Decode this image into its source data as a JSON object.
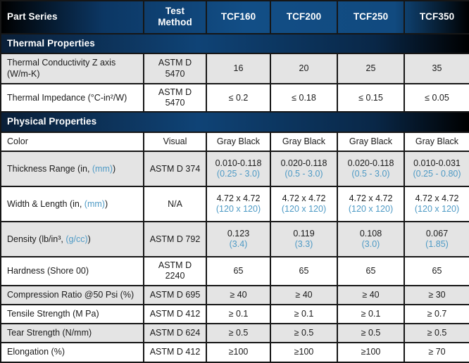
{
  "colors": {
    "header_navy": "#114a7f",
    "header_black": "#000000",
    "section_navy": "#0f4376",
    "accent_blue": "#4e9ac5",
    "row_shaded": "#e4e4e4",
    "row_white": "#ffffff",
    "border": "#161616",
    "header_text": "#ffffff",
    "body_text": "#1a1a1a"
  },
  "table": {
    "header": {
      "part_series_label": "Part Series",
      "test_method_label": "Test Method",
      "products": [
        "TCF160",
        "TCF200",
        "TCF250",
        "TCF350"
      ]
    },
    "sections": [
      {
        "title": "Thermal Properties",
        "rows": [
          {
            "label": [
              {
                "t": "Thermal Conductivity Z axis"
              },
              {
                "br": true
              },
              {
                "t": "(W/m-K)"
              }
            ],
            "test": "ASTM D\n5470",
            "shaded": true,
            "values": [
              {
                "v": "16"
              },
              {
                "v": "20"
              },
              {
                "v": "25"
              },
              {
                "v": "35"
              }
            ]
          },
          {
            "label": [
              {
                "t": "Thermal Impedance (°C-in²/W)"
              }
            ],
            "test": "ASTM D\n5470",
            "shaded": false,
            "values": [
              {
                "v": "≤ 0.2"
              },
              {
                "v": "≤ 0.18"
              },
              {
                "v": "≤ 0.15"
              },
              {
                "v": "≤ 0.05"
              }
            ]
          }
        ]
      },
      {
        "title": "Physical Properties",
        "rows": [
          {
            "label": [
              {
                "t": "Color"
              }
            ],
            "test": "Visual",
            "shaded": false,
            "values": [
              {
                "v": "Gray Black"
              },
              {
                "v": "Gray Black"
              },
              {
                "v": "Gray Black"
              },
              {
                "v": "Gray Black"
              }
            ]
          },
          {
            "label": [
              {
                "t": "Thickness Range (in, "
              },
              {
                "t": "(mm)",
                "blue": true
              },
              {
                "t": ")"
              }
            ],
            "test": "ASTM D 374",
            "shaded": true,
            "values": [
              {
                "v": "0.010-0.118",
                "sub": "(0.25 - 3.0)"
              },
              {
                "v": "0.020-0.118",
                "sub": "(0.5 - 3.0)"
              },
              {
                "v": "0.020-0.118",
                "sub": "(0.5 - 3.0)"
              },
              {
                "v": "0.010-0.031",
                "sub": "(0.25 - 0.80)"
              }
            ]
          },
          {
            "label": [
              {
                "t": "Width & Length (in, "
              },
              {
                "t": "(mm)",
                "blue": true
              },
              {
                "t": ")"
              }
            ],
            "test": "N/A",
            "shaded": false,
            "values": [
              {
                "v": "4.72 x 4.72",
                "sub": "(120 x 120)"
              },
              {
                "v": "4.72 x 4.72",
                "sub": "(120 x 120)"
              },
              {
                "v": "4.72 x 4.72",
                "sub": "(120 x 120)"
              },
              {
                "v": "4.72 x 4.72",
                "sub": "(120 x 120)"
              }
            ]
          },
          {
            "label": [
              {
                "t": "Density (lb/in³, "
              },
              {
                "t": "(g/cc)",
                "blue": true
              },
              {
                "t": ")"
              }
            ],
            "test": "ASTM D 792",
            "shaded": true,
            "values": [
              {
                "v": "0.123",
                "sub": "(3.4)"
              },
              {
                "v": "0.119",
                "sub": "(3.3)"
              },
              {
                "v": "0.108",
                "sub": "(3.0)"
              },
              {
                "v": "0.067",
                "sub": "(1.85)"
              }
            ]
          },
          {
            "label": [
              {
                "t": "Hardness (Shore 00)"
              }
            ],
            "test": "ASTM D\n2240",
            "shaded": false,
            "values": [
              {
                "v": "65"
              },
              {
                "v": "65"
              },
              {
                "v": "65"
              },
              {
                "v": "65"
              }
            ]
          },
          {
            "label": [
              {
                "t": "Compression Ratio @50 Psi (%)"
              }
            ],
            "test": "ASTM D 695",
            "shaded": true,
            "values": [
              {
                "v": "≥ 40"
              },
              {
                "v": "≥ 40"
              },
              {
                "v": "≥ 40"
              },
              {
                "v": "≥ 30"
              }
            ]
          },
          {
            "label": [
              {
                "t": "Tensile Strength (M Pa)"
              }
            ],
            "test": "ASTM D 412",
            "shaded": false,
            "values": [
              {
                "v": "≥ 0.1"
              },
              {
                "v": "≥ 0.1"
              },
              {
                "v": "≥ 0.1"
              },
              {
                "v": "≥ 0.7"
              }
            ]
          },
          {
            "label": [
              {
                "t": "Tear Strength (N/mm)"
              }
            ],
            "test": "ASTM D 624",
            "shaded": true,
            "values": [
              {
                "v": "≥ 0.5"
              },
              {
                "v": "≥ 0.5"
              },
              {
                "v": "≥ 0.5"
              },
              {
                "v": "≥ 0.5"
              }
            ]
          },
          {
            "label": [
              {
                "t": "Elongation (%)"
              }
            ],
            "test": "ASTM D 412",
            "shaded": false,
            "values": [
              {
                "v": "≥100"
              },
              {
                "v": "≥100"
              },
              {
                "v": "≥100"
              },
              {
                "v": "≥ 70"
              }
            ]
          }
        ]
      }
    ]
  }
}
